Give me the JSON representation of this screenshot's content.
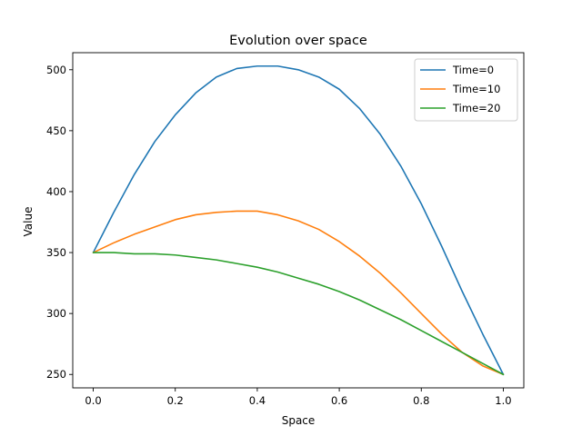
{
  "chart_data": {
    "type": "line",
    "title": "Evolution over space",
    "xlabel": "Space",
    "ylabel": "Value",
    "xlim": [
      -0.05,
      1.05
    ],
    "ylim": [
      239,
      514
    ],
    "xticks": [
      0.0,
      0.2,
      0.4,
      0.6,
      0.8,
      1.0
    ],
    "xtick_labels": [
      "0.0",
      "0.2",
      "0.4",
      "0.6",
      "0.8",
      "1.0"
    ],
    "yticks": [
      250,
      300,
      350,
      400,
      450,
      500
    ],
    "ytick_labels": [
      "250",
      "300",
      "350",
      "400",
      "450",
      "500"
    ],
    "grid": false,
    "legend_position": "top-right",
    "x": [
      0.0,
      0.05,
      0.1,
      0.15,
      0.2,
      0.25,
      0.3,
      0.35,
      0.4,
      0.45,
      0.5,
      0.55,
      0.6,
      0.65,
      0.7,
      0.75,
      0.8,
      0.85,
      0.9,
      0.95,
      1.0
    ],
    "series": [
      {
        "name": "Time=0",
        "color": "#1f77b4",
        "values": [
          350,
          383,
          414,
          441,
          463,
          481,
          494,
          501,
          503,
          503,
          500,
          494,
          484,
          468,
          447,
          421,
          390,
          355,
          318,
          283,
          250
        ]
      },
      {
        "name": "Time=10",
        "color": "#ff7f0e",
        "values": [
          350,
          358,
          365,
          371,
          377,
          381,
          383,
          384,
          384,
          381,
          376,
          369,
          359,
          347,
          333,
          317,
          300,
          283,
          268,
          257,
          250
        ]
      },
      {
        "name": "Time=20",
        "color": "#2ca02c",
        "values": [
          350,
          350,
          349,
          349,
          348,
          346,
          344,
          341,
          338,
          334,
          329,
          324,
          318,
          311,
          303,
          295,
          286,
          277,
          268,
          259,
          250
        ]
      }
    ]
  }
}
